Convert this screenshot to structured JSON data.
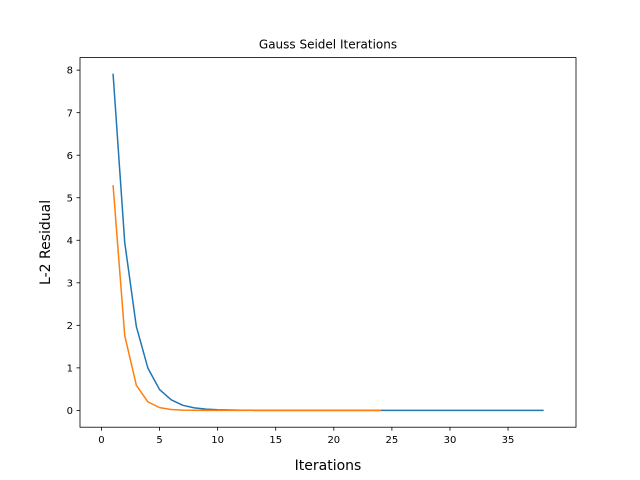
{
  "chart_data": {
    "type": "line",
    "title": "Gauss Seidel Iterations",
    "xlabel": "Iterations",
    "ylabel": "L-2 Residual",
    "xlim": [
      -1.85,
      40.85
    ],
    "ylim": [
      -0.395,
      8.295
    ],
    "xticks": [
      0,
      5,
      10,
      15,
      20,
      25,
      30,
      35
    ],
    "yticks": [
      0,
      1,
      2,
      3,
      4,
      5,
      6,
      7,
      8
    ],
    "grid": false,
    "series": [
      {
        "color": "#1f77b4",
        "x": [
          1,
          2,
          3,
          4,
          5,
          6,
          7,
          8,
          9,
          10,
          11,
          12,
          13,
          14,
          15,
          16,
          17,
          18,
          19,
          20,
          21,
          22,
          23,
          24,
          25,
          26,
          27,
          28,
          29,
          30,
          31,
          32,
          33,
          34,
          35,
          36,
          37,
          38
        ],
        "y": [
          7.9,
          3.95,
          1.97,
          0.99,
          0.49,
          0.25,
          0.12,
          0.06,
          0.031,
          0.015,
          0.008,
          0.004,
          0.002,
          0.001,
          0,
          0,
          0,
          0,
          0,
          0,
          0,
          0,
          0,
          0,
          0,
          0,
          0,
          0,
          0,
          0,
          0,
          0,
          0,
          0,
          0,
          0,
          0,
          0
        ]
      },
      {
        "color": "#ff7f0e",
        "x": [
          1,
          2,
          3,
          4,
          5,
          6,
          7,
          8,
          9,
          10,
          11,
          12,
          13,
          14,
          15,
          16,
          17,
          18,
          19,
          20,
          21,
          22,
          23,
          24
        ],
        "y": [
          5.28,
          1.76,
          0.59,
          0.2,
          0.065,
          0.022,
          0.007,
          0.002,
          0.001,
          0,
          0,
          0,
          0,
          0,
          0,
          0,
          0,
          0,
          0,
          0,
          0,
          0,
          0,
          0
        ]
      }
    ]
  }
}
